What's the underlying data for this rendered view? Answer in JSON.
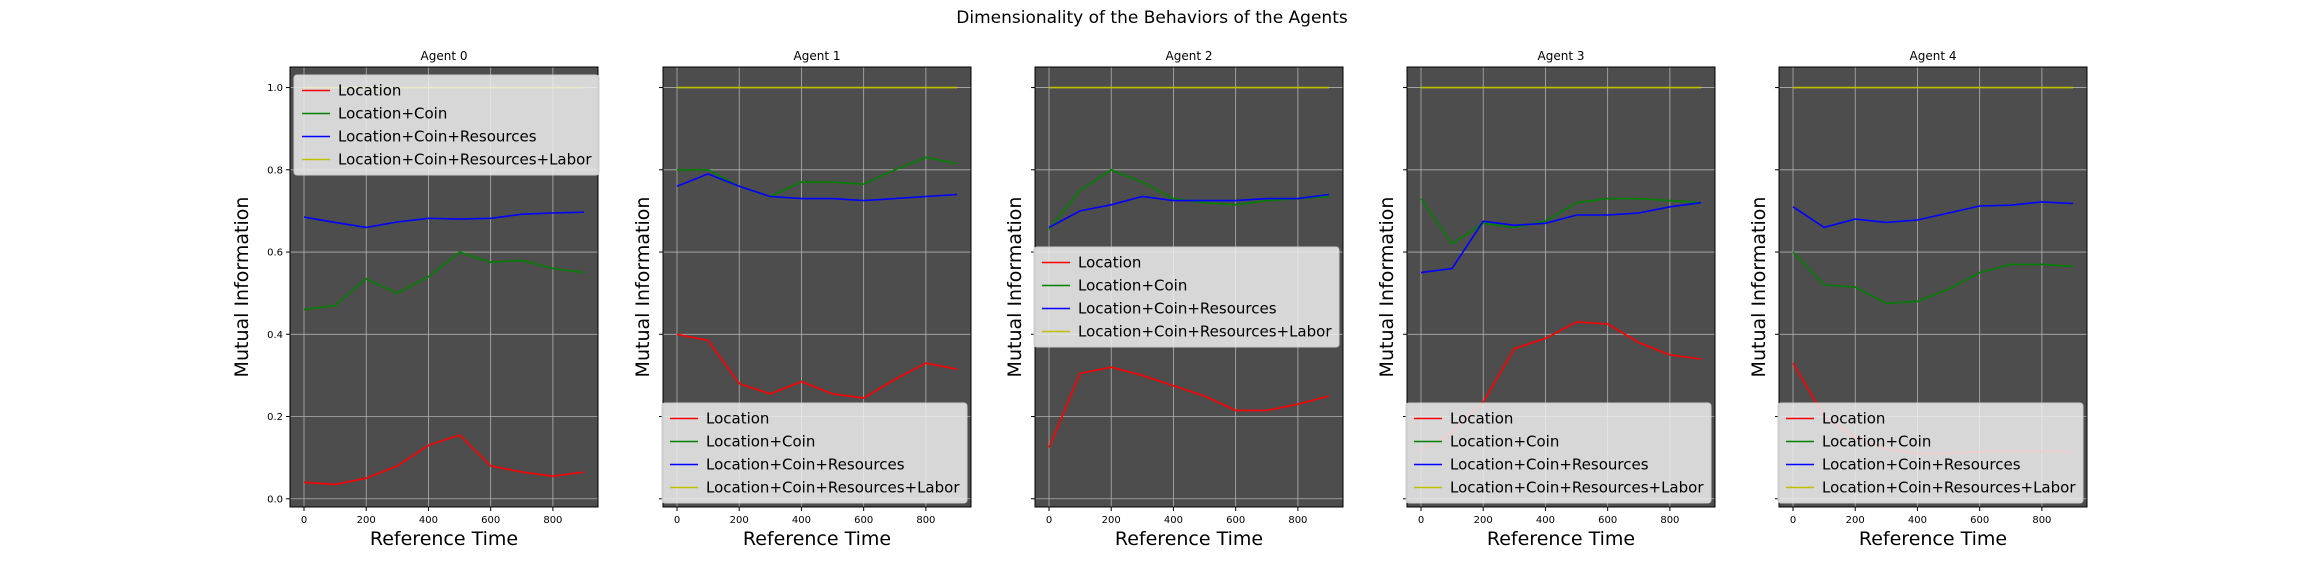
{
  "figure": {
    "title": "Dimensionality of the Behaviors of the Agents"
  },
  "chart_data": [
    {
      "type": "line",
      "title": "Agent 0",
      "xlabel": "Reference Time",
      "ylabel": "Mutual Information",
      "x": [
        0,
        100,
        200,
        300,
        400,
        500,
        600,
        700,
        800,
        900
      ],
      "xticks": [
        0,
        200,
        400,
        600,
        800
      ],
      "yticks": [
        0.0,
        0.2,
        0.4,
        0.6,
        0.8,
        1.0
      ],
      "xlim": [
        -45,
        945
      ],
      "ylim": [
        -0.02,
        1.05
      ],
      "grid": true,
      "legend": "upper-left",
      "series": [
        {
          "name": "Location",
          "color": "#ff0000",
          "values": [
            0.04,
            0.035,
            0.05,
            0.08,
            0.13,
            0.155,
            0.08,
            0.065,
            0.055,
            0.065
          ]
        },
        {
          "name": "Location+Coin",
          "color": "#008000",
          "values": [
            0.46,
            0.47,
            0.535,
            0.5,
            0.54,
            0.6,
            0.575,
            0.58,
            0.56,
            0.55
          ]
        },
        {
          "name": "Location+Coin+Resources",
          "color": "#0000ff",
          "values": [
            0.685,
            0.672,
            0.66,
            0.673,
            0.682,
            0.68,
            0.682,
            0.692,
            0.695,
            0.697
          ]
        },
        {
          "name": "Location+Coin+Resources+Labor",
          "color": "#bfbf00",
          "values": [
            1.0,
            1.0,
            1.0,
            1.0,
            1.0,
            1.0,
            1.0,
            1.0,
            1.0,
            1.0
          ]
        }
      ]
    },
    {
      "type": "line",
      "title": "Agent 1",
      "xlabel": "Reference Time",
      "ylabel": "Mutual Information",
      "x": [
        0,
        100,
        200,
        300,
        400,
        500,
        600,
        700,
        800,
        900
      ],
      "xticks": [
        0,
        200,
        400,
        600,
        800
      ],
      "yticks": [
        0.0,
        0.2,
        0.4,
        0.6,
        0.8,
        1.0
      ],
      "xlim": [
        -45,
        945
      ],
      "ylim": [
        -0.02,
        1.05
      ],
      "grid": true,
      "legend": "lower-right",
      "series": [
        {
          "name": "Location",
          "color": "#ff0000",
          "values": [
            0.4,
            0.385,
            0.28,
            0.255,
            0.285,
            0.255,
            0.245,
            0.29,
            0.33,
            0.315
          ]
        },
        {
          "name": "Location+Coin",
          "color": "#008000",
          "values": [
            0.8,
            0.8,
            0.76,
            0.735,
            0.77,
            0.77,
            0.765,
            0.8,
            0.83,
            0.815
          ]
        },
        {
          "name": "Location+Coin+Resources",
          "color": "#0000ff",
          "values": [
            0.76,
            0.79,
            0.76,
            0.735,
            0.73,
            0.73,
            0.725,
            0.73,
            0.735,
            0.74
          ]
        },
        {
          "name": "Location+Coin+Resources+Labor",
          "color": "#bfbf00",
          "values": [
            1.0,
            1.0,
            1.0,
            1.0,
            1.0,
            1.0,
            1.0,
            1.0,
            1.0,
            1.0
          ]
        }
      ]
    },
    {
      "type": "line",
      "title": "Agent 2",
      "xlabel": "Reference Time",
      "ylabel": "Mutual Information",
      "x": [
        0,
        100,
        200,
        300,
        400,
        500,
        600,
        700,
        800,
        900
      ],
      "xticks": [
        0,
        200,
        400,
        600,
        800
      ],
      "yticks": [
        0.0,
        0.2,
        0.4,
        0.6,
        0.8,
        1.0
      ],
      "xlim": [
        -45,
        945
      ],
      "ylim": [
        -0.02,
        1.05
      ],
      "grid": true,
      "legend": "center-right",
      "series": [
        {
          "name": "Location",
          "color": "#ff0000",
          "values": [
            0.125,
            0.305,
            0.32,
            0.3,
            0.275,
            0.25,
            0.215,
            0.215,
            0.23,
            0.25
          ]
        },
        {
          "name": "Location+Coin",
          "color": "#008000",
          "values": [
            0.655,
            0.75,
            0.8,
            0.77,
            0.73,
            0.72,
            0.715,
            0.725,
            0.73,
            0.735
          ]
        },
        {
          "name": "Location+Coin+Resources",
          "color": "#0000ff",
          "values": [
            0.66,
            0.7,
            0.715,
            0.735,
            0.725,
            0.725,
            0.725,
            0.73,
            0.73,
            0.74
          ]
        },
        {
          "name": "Location+Coin+Resources+Labor",
          "color": "#bfbf00",
          "values": [
            1.0,
            1.0,
            1.0,
            1.0,
            1.0,
            1.0,
            1.0,
            1.0,
            1.0,
            1.0
          ]
        }
      ]
    },
    {
      "type": "line",
      "title": "Agent 3",
      "xlabel": "Reference Time",
      "ylabel": "Mutual Information",
      "x": [
        0,
        100,
        200,
        300,
        400,
        500,
        600,
        700,
        800,
        900
      ],
      "xticks": [
        0,
        200,
        400,
        600,
        800
      ],
      "yticks": [
        0.0,
        0.2,
        0.4,
        0.6,
        0.8,
        1.0
      ],
      "xlim": [
        -45,
        945
      ],
      "ylim": [
        -0.02,
        1.05
      ],
      "grid": true,
      "legend": "lower-right",
      "series": [
        {
          "name": "Location",
          "color": "#ff0000",
          "values": [
            0.12,
            0.16,
            0.235,
            0.365,
            0.39,
            0.43,
            0.425,
            0.38,
            0.35,
            0.34
          ]
        },
        {
          "name": "Location+Coin",
          "color": "#008000",
          "values": [
            0.73,
            0.62,
            0.67,
            0.66,
            0.675,
            0.72,
            0.73,
            0.73,
            0.725,
            0.72
          ]
        },
        {
          "name": "Location+Coin+Resources",
          "color": "#0000ff",
          "values": [
            0.55,
            0.56,
            0.675,
            0.665,
            0.67,
            0.69,
            0.69,
            0.695,
            0.71,
            0.72
          ]
        },
        {
          "name": "Location+Coin+Resources+Labor",
          "color": "#bfbf00",
          "values": [
            1.0,
            1.0,
            1.0,
            1.0,
            1.0,
            1.0,
            1.0,
            1.0,
            1.0,
            1.0
          ]
        }
      ]
    },
    {
      "type": "line",
      "title": "Agent 4",
      "xlabel": "Reference Time",
      "ylabel": "Mutual Information",
      "x": [
        0,
        100,
        200,
        300,
        400,
        500,
        600,
        700,
        800,
        900
      ],
      "xticks": [
        0,
        200,
        400,
        600,
        800
      ],
      "yticks": [
        0.0,
        0.2,
        0.4,
        0.6,
        0.8,
        1.0
      ],
      "xlim": [
        -45,
        945
      ],
      "ylim": [
        -0.02,
        1.05
      ],
      "grid": true,
      "legend": "lower-right",
      "series": [
        {
          "name": "Location",
          "color": "#ff0000",
          "values": [
            0.33,
            0.2,
            0.15,
            0.12,
            0.11,
            0.11,
            0.115,
            0.115,
            0.115,
            0.115
          ]
        },
        {
          "name": "Location+Coin",
          "color": "#008000",
          "values": [
            0.6,
            0.52,
            0.515,
            0.475,
            0.48,
            0.51,
            0.55,
            0.57,
            0.57,
            0.565
          ]
        },
        {
          "name": "Location+Coin+Resources",
          "color": "#0000ff",
          "values": [
            0.71,
            0.66,
            0.68,
            0.672,
            0.678,
            0.695,
            0.712,
            0.714,
            0.722,
            0.718
          ]
        },
        {
          "name": "Location+Coin+Resources+Labor",
          "color": "#bfbf00",
          "values": [
            1.0,
            1.0,
            1.0,
            1.0,
            1.0,
            1.0,
            1.0,
            1.0,
            1.0,
            1.0
          ]
        }
      ]
    }
  ]
}
